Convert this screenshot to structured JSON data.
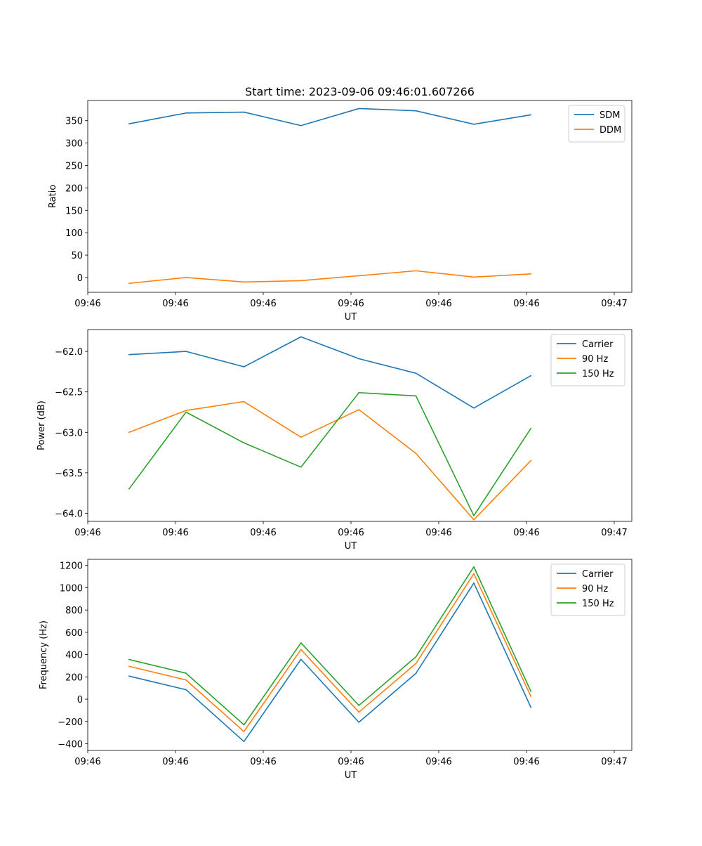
{
  "figure": {
    "title": "Start time: 2023-09-06 09:46:01.607266"
  },
  "colors": {
    "blue": "#1f77b4",
    "orange": "#ff7f0e",
    "green": "#2ca02c"
  },
  "chart_data": [
    {
      "id": "ratio",
      "type": "line",
      "title": "Start time: 2023-09-06 09:46:01.607266",
      "xlabel": "UT",
      "ylabel": "Ratio",
      "xlim": [
        0,
        6.2
      ],
      "ylim": [
        -33,
        395
      ],
      "x_ticks": [
        0.0,
        1.0,
        2.0,
        3.0,
        4.0,
        5.0,
        6.0
      ],
      "x_tick_labels": [
        "09:46",
        "09:46",
        "09:46",
        "09:46",
        "09:46",
        "09:46",
        "09:47"
      ],
      "y_ticks": [
        0,
        50,
        100,
        150,
        200,
        250,
        300,
        350
      ],
      "y_tick_labels": [
        "0",
        "50",
        "100",
        "150",
        "200",
        "250",
        "300",
        "350"
      ],
      "x": [
        0.47,
        1.12,
        1.78,
        2.43,
        3.09,
        3.74,
        4.4,
        5.05
      ],
      "legend_position": "top-right",
      "series": [
        {
          "name": "SDM",
          "color": "#1f77b4",
          "values": [
            343,
            367,
            369,
            339,
            377,
            372,
            342,
            363
          ]
        },
        {
          "name": "DDM",
          "color": "#ff7f0e",
          "values": [
            -13,
            0,
            -10,
            -7,
            4,
            15,
            1,
            8
          ]
        }
      ]
    },
    {
      "id": "power",
      "type": "line",
      "xlabel": "UT",
      "ylabel": "Power (dB)",
      "xlim": [
        0,
        6.2
      ],
      "ylim": [
        -64.1,
        -61.73
      ],
      "x_ticks": [
        0.0,
        1.0,
        2.0,
        3.0,
        4.0,
        5.0,
        6.0
      ],
      "x_tick_labels": [
        "09:46",
        "09:46",
        "09:46",
        "09:46",
        "09:46",
        "09:46",
        "09:47"
      ],
      "y_ticks": [
        -64.0,
        -63.5,
        -63.0,
        -62.5,
        -62.0
      ],
      "y_tick_labels": [
        "−64.0",
        "−63.5",
        "−63.0",
        "−62.5",
        "−62.0"
      ],
      "x": [
        0.47,
        1.12,
        1.78,
        2.43,
        3.09,
        3.74,
        4.4,
        5.05
      ],
      "legend_position": "top-right",
      "series": [
        {
          "name": "Carrier",
          "color": "#1f77b4",
          "values": [
            -62.04,
            -62.0,
            -62.19,
            -61.82,
            -62.09,
            -62.27,
            -62.7,
            -62.3
          ]
        },
        {
          "name": "90 Hz",
          "color": "#ff7f0e",
          "values": [
            -63.0,
            -62.73,
            -62.62,
            -63.06,
            -62.72,
            -63.26,
            -64.08,
            -63.35
          ]
        },
        {
          "name": "150 Hz",
          "color": "#2ca02c",
          "values": [
            -63.7,
            -62.75,
            -63.13,
            -63.43,
            -62.51,
            -62.55,
            -64.03,
            -62.95
          ]
        }
      ]
    },
    {
      "id": "frequency",
      "type": "line",
      "xlabel": "UT",
      "ylabel": "Frequency (Hz)",
      "xlim": [
        0,
        6.2
      ],
      "ylim": [
        -460,
        1255
      ],
      "x_ticks": [
        0.0,
        1.0,
        2.0,
        3.0,
        4.0,
        5.0,
        6.0
      ],
      "x_tick_labels": [
        "09:46",
        "09:46",
        "09:46",
        "09:46",
        "09:46",
        "09:46",
        "09:47"
      ],
      "y_ticks": [
        -400,
        -200,
        0,
        200,
        400,
        600,
        800,
        1000,
        1200
      ],
      "y_tick_labels": [
        "−400",
        "−200",
        "0",
        "200",
        "400",
        "600",
        "800",
        "1000",
        "1200"
      ],
      "x": [
        0.47,
        1.12,
        1.78,
        2.43,
        3.09,
        3.74,
        4.4,
        5.05
      ],
      "legend_position": "top-right",
      "series": [
        {
          "name": "Carrier",
          "color": "#1f77b4",
          "values": [
            207,
            85,
            -380,
            358,
            -207,
            232,
            1042,
            -73
          ]
        },
        {
          "name": "90 Hz",
          "color": "#ff7f0e",
          "values": [
            295,
            172,
            -290,
            445,
            -116,
            320,
            1126,
            25
          ]
        },
        {
          "name": "150 Hz",
          "color": "#2ca02c",
          "values": [
            356,
            233,
            -230,
            505,
            -56,
            380,
            1188,
            70
          ]
        }
      ]
    }
  ]
}
